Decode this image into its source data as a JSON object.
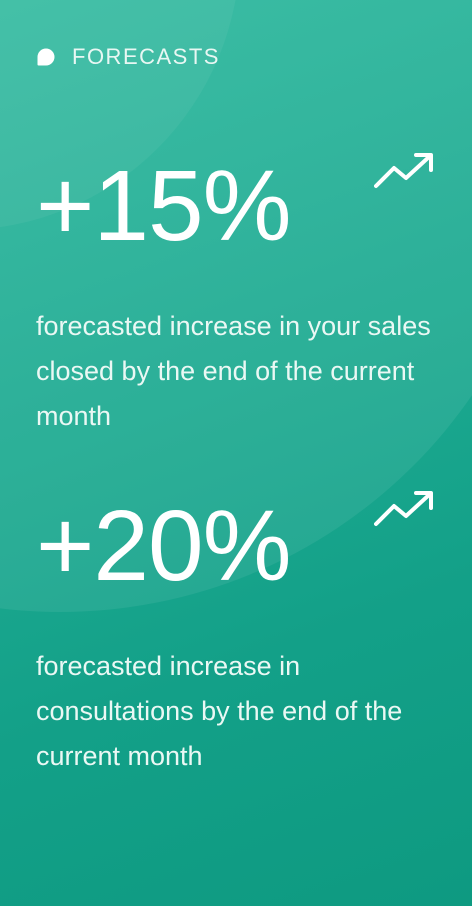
{
  "header": {
    "label": "FORECASTS",
    "icon": "chat-bubble-icon"
  },
  "stats": [
    {
      "value": "+15%",
      "description": "forecasted increase in your sales closed by the end of the current month",
      "icon": "trend-up-icon"
    },
    {
      "value": "+20%",
      "description": "forecasted increase in consultations by the end of the current month",
      "icon": "trend-up-icon"
    }
  ],
  "colors": {
    "background_start": "#2cb89d",
    "background_end": "#0e9a81",
    "text": "#ffffff"
  }
}
